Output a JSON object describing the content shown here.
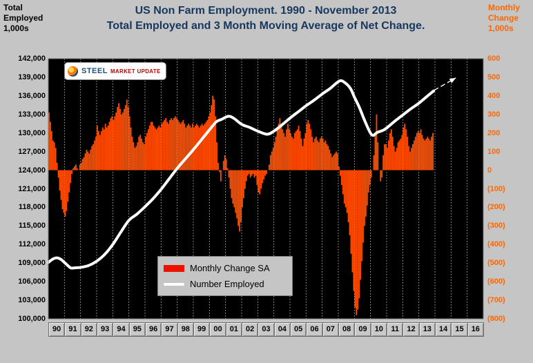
{
  "page": {
    "background": "#C5C5C5"
  },
  "title": {
    "line1": "US Non Farm Employment. 1990 - November  2013",
    "line2": "Total Employed and 3 Month Moving Average of Net Change.",
    "color": "#17375E"
  },
  "left_axis_header": {
    "lines": [
      "Total",
      "Employed",
      "1,000s"
    ]
  },
  "right_axis_header": {
    "lines": [
      "Monthly",
      "Change",
      "1,000s"
    ],
    "color": "#FF6600"
  },
  "logo": {
    "text_steel": "STEEL",
    "text_market_update": "MARKET UPDATE"
  },
  "legend": {
    "items": [
      {
        "label": "Monthly Change SA",
        "swatch_color": "#EE1100",
        "type": "bar"
      },
      {
        "label": "Number Employed",
        "swatch_color": "#FFFFFF",
        "type": "line"
      }
    ]
  },
  "chart_data": {
    "type": "combo",
    "title": "US Non Farm Employment. 1990 - November 2013. Total Employed and 3 Month Moving Average of Net Change.",
    "plot_background": "#000000",
    "grid": {
      "vertical": true,
      "horizontal": false,
      "color": "#FFFFFF",
      "style": "dotted"
    },
    "legend_position": "inside-lower-left",
    "x_axis": {
      "start_year": 1990,
      "years_shown": 27,
      "labels": [
        "90",
        "91",
        "92",
        "93",
        "94",
        "95",
        "96",
        "97",
        "98",
        "99",
        "00",
        "01",
        "02",
        "03",
        "04",
        "05",
        "06",
        "07",
        "08",
        "09",
        "10",
        "11",
        "12",
        "13",
        "14",
        "15",
        "16"
      ]
    },
    "left_axis": {
      "label": "Total Employed 1,000s",
      "max": 142000,
      "min": 100000,
      "step": 3000,
      "tick_labels": [
        "142,000",
        "139,000",
        "136,000",
        "133,000",
        "130,000",
        "127,000",
        "124,000",
        "121,000",
        "118,000",
        "115,000",
        "112,000",
        "109,000",
        "106,000",
        "103,000",
        "100,000"
      ]
    },
    "right_axis": {
      "label": "Monthly Change 1,000s",
      "max": 600,
      "min": -800,
      "step": 100,
      "color": "#FF6600",
      "tick_labels": [
        "600",
        "500",
        "400",
        "300",
        "200",
        "100",
        "0",
        "(100)",
        "(200)",
        "(300)",
        "(400)",
        "(500)",
        "(600)",
        "(700)",
        "(800)"
      ]
    },
    "series": [
      {
        "name": "Monthly Change SA",
        "type": "bar",
        "axis": "right",
        "color": "#FF4E00",
        "units": "thousands, 3-month moving average of net change",
        "monthly_values": {
          "1990": [
            310,
            260,
            210,
            160,
            150,
            120,
            40,
            -40,
            -110,
            -160,
            -210,
            -230
          ],
          "1991": [
            -250,
            -220,
            -170,
            -120,
            -70,
            -20,
            10,
            20,
            30,
            10,
            0,
            30
          ],
          "1992": [
            40,
            60,
            70,
            90,
            110,
            100,
            90,
            110,
            130,
            140,
            160,
            180
          ],
          "1993": [
            240,
            210,
            190,
            210,
            230,
            220,
            250,
            230,
            240,
            260,
            280,
            290
          ],
          "1994": [
            270,
            290,
            310,
            340,
            360,
            330,
            300,
            310,
            330,
            350,
            380,
            340
          ],
          "1995": [
            290,
            230,
            180,
            150,
            120,
            130,
            150,
            180,
            190,
            170,
            150,
            140
          ],
          "1996": [
            180,
            200,
            220,
            240,
            260,
            260,
            240,
            230,
            220,
            230,
            240,
            230
          ],
          "1997": [
            250,
            260,
            270,
            280,
            260,
            250,
            270,
            280,
            270,
            280,
            290,
            280
          ],
          "1998": [
            270,
            260,
            250,
            260,
            270,
            250,
            230,
            240,
            250,
            240,
            230,
            250
          ],
          "1999": [
            230,
            240,
            250,
            240,
            230,
            240,
            250,
            240,
            250,
            260,
            270,
            290
          ],
          "2000": [
            310,
            350,
            400,
            380,
            290,
            150,
            40,
            -10,
            -60,
            0,
            50,
            80
          ],
          "2001": [
            60,
            10,
            -40,
            -100,
            -150,
            -180,
            -200,
            -230,
            -260,
            -300,
            -330,
            -280
          ],
          "2002": [
            -200,
            -150,
            -100,
            -60,
            -30,
            -20,
            -40,
            -30,
            -20,
            -40,
            -30,
            -80
          ],
          "2003": [
            -120,
            -130,
            -100,
            -70,
            -50,
            -30,
            -20,
            0,
            30,
            80,
            100,
            120
          ],
          "2004": [
            150,
            180,
            220,
            250,
            280,
            250,
            220,
            200,
            180,
            220,
            250,
            220
          ],
          "2005": [
            200,
            180,
            170,
            200,
            210,
            220,
            240,
            210,
            170,
            130,
            170,
            200
          ],
          "2006": [
            250,
            270,
            250,
            220,
            180,
            150,
            170,
            180,
            160,
            150,
            170,
            180
          ],
          "2007": [
            170,
            150,
            160,
            140,
            130,
            110,
            90,
            70,
            80,
            90,
            100,
            90
          ],
          "2008": [
            20,
            -30,
            -80,
            -130,
            -180,
            -200,
            -230,
            -280,
            -350,
            -450,
            -550,
            -650
          ],
          "2009": [
            -740,
            -780,
            -750,
            -690,
            -590,
            -490,
            -390,
            -300,
            -250,
            -190,
            -120,
            -80
          ],
          "2010": [
            -40,
            0,
            80,
            200,
            300,
            150,
            0,
            -60,
            -40,
            80,
            140,
            140
          ],
          "2011": [
            120,
            160,
            200,
            220,
            180,
            130,
            100,
            120,
            150,
            160,
            170,
            190
          ],
          "2012": [
            230,
            250,
            220,
            180,
            130,
            100,
            120,
            140,
            160,
            180,
            200,
            210
          ],
          "2013": [
            200,
            220,
            190,
            170,
            160,
            170,
            180,
            170,
            160,
            180,
            200
          ]
        }
      },
      {
        "name": "Number Employed",
        "type": "line",
        "axis": "left",
        "color": "#FFFFFF",
        "units": "thousands",
        "points": [
          [
            1990.0,
            109100
          ],
          [
            1990.25,
            109600
          ],
          [
            1990.5,
            109850
          ],
          [
            1990.75,
            109650
          ],
          [
            1991.0,
            109100
          ],
          [
            1991.25,
            108500
          ],
          [
            1991.42,
            108200
          ],
          [
            1991.75,
            108250
          ],
          [
            1992.0,
            108300
          ],
          [
            1992.5,
            108600
          ],
          [
            1993.0,
            109300
          ],
          [
            1993.5,
            110400
          ],
          [
            1994.0,
            112000
          ],
          [
            1994.5,
            114000
          ],
          [
            1995.0,
            115900
          ],
          [
            1995.5,
            116900
          ],
          [
            1996.0,
            118100
          ],
          [
            1996.5,
            119400
          ],
          [
            1997.0,
            120900
          ],
          [
            1997.5,
            122600
          ],
          [
            1998.0,
            124300
          ],
          [
            1998.5,
            125800
          ],
          [
            1999.0,
            127300
          ],
          [
            1999.5,
            128900
          ],
          [
            2000.0,
            130500
          ],
          [
            2000.42,
            131800
          ],
          [
            2000.75,
            132200
          ],
          [
            2001.17,
            132700
          ],
          [
            2001.5,
            132400
          ],
          [
            2002.0,
            131400
          ],
          [
            2002.5,
            130900
          ],
          [
            2003.0,
            130300
          ],
          [
            2003.58,
            129800
          ],
          [
            2004.0,
            130300
          ],
          [
            2004.5,
            131300
          ],
          [
            2005.0,
            132400
          ],
          [
            2005.5,
            133400
          ],
          [
            2006.0,
            134400
          ],
          [
            2006.5,
            135300
          ],
          [
            2007.0,
            136300
          ],
          [
            2007.5,
            137200
          ],
          [
            2008.08,
            138400
          ],
          [
            2008.42,
            138100
          ],
          [
            2008.75,
            137200
          ],
          [
            2009.0,
            135800
          ],
          [
            2009.33,
            134000
          ],
          [
            2009.67,
            131800
          ],
          [
            2010.08,
            129700
          ],
          [
            2010.42,
            130100
          ],
          [
            2010.75,
            130400
          ],
          [
            2011.0,
            130800
          ],
          [
            2011.5,
            131900
          ],
          [
            2012.0,
            132900
          ],
          [
            2012.5,
            133900
          ],
          [
            2013.0,
            134800
          ],
          [
            2013.5,
            135900
          ],
          [
            2013.92,
            136800
          ]
        ]
      },
      {
        "name": "Projection Arrow",
        "type": "arrow",
        "axis": "left",
        "color": "#FFFFFF",
        "points": [
          [
            2013.95,
            136900
          ],
          [
            2015.3,
            138900
          ]
        ]
      }
    ]
  }
}
